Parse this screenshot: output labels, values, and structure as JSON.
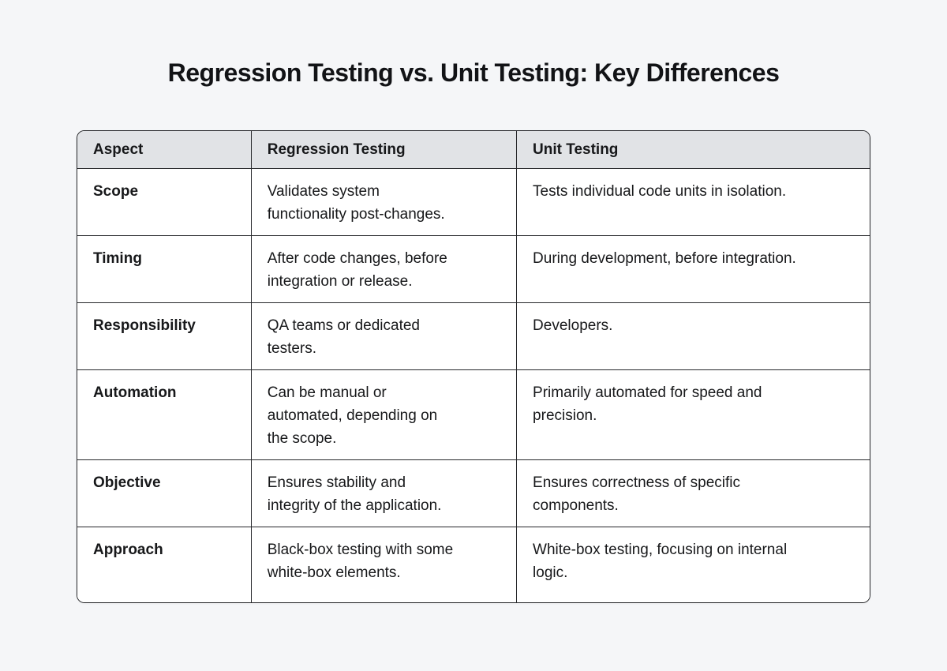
{
  "page": {
    "title": "Regression Testing vs. Unit Testing: Key Differences",
    "background_color": "#f5f6f8",
    "text_color": "#17181a"
  },
  "table": {
    "style": {
      "header_background": "#e1e3e6",
      "cell_background": "#ffffff",
      "border_color": "#26272a"
    },
    "columns": [
      "Aspect",
      "Regression Testing",
      "Unit Testing"
    ],
    "rows": [
      {
        "aspect": "Scope",
        "regression": "Validates system\nfunctionality post-changes.",
        "unit": "Tests individual code units in isolation."
      },
      {
        "aspect": "Timing",
        "regression": "After code changes, before\nintegration or release.",
        "unit": "During development, before integration."
      },
      {
        "aspect": "Responsibility",
        "regression": "QA teams or dedicated\ntesters.",
        "unit": "Developers."
      },
      {
        "aspect": "Automation",
        "regression": "Can be manual or\nautomated, depending on\nthe scope.",
        "unit": "Primarily automated for speed and\nprecision."
      },
      {
        "aspect": "Objective",
        "regression": "Ensures stability and\nintegrity of the application.",
        "unit": "Ensures correctness of specific\ncomponents."
      },
      {
        "aspect": "Approach",
        "regression": "Black-box testing with some\nwhite-box elements.",
        "unit": "White-box testing, focusing on internal\nlogic."
      }
    ]
  }
}
